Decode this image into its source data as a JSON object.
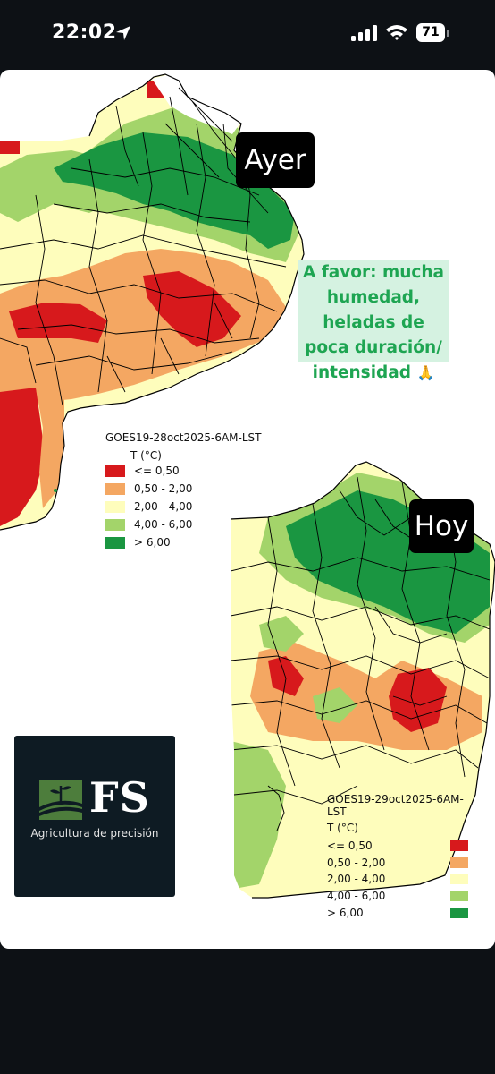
{
  "status_bar": {
    "time": "22:02",
    "battery": "71",
    "icons": [
      "location-arrow-icon",
      "signal-icon",
      "wifi-icon",
      "battery-icon"
    ]
  },
  "post": {
    "tag_yesterday": "Ayer",
    "tag_today": "Hoy",
    "note": {
      "line1": "A favor: mucha",
      "line2": "humedad, heladas de",
      "line3": "poca duración/",
      "line4": "intensidad",
      "emoji": "🙏"
    }
  },
  "legend_yesterday": {
    "title": "GOES19-28oct2025-6AM-LST",
    "unit": "T (°C)",
    "classes": [
      {
        "label": "<= 0,50",
        "color": "#d7191c"
      },
      {
        "label": "0,50 - 2,00",
        "color": "#f4a762"
      },
      {
        "label": "2,00 - 4,00",
        "color": "#fefdbc"
      },
      {
        "label": "4,00 - 6,00",
        "color": "#a3d46a"
      },
      {
        "label": "> 6,00",
        "color": "#1a9641"
      }
    ]
  },
  "legend_today": {
    "title": "GOES19-29oct2025-6AM-LST",
    "unit": "T (°C)",
    "classes": [
      {
        "label": "<= 0,50",
        "color": "#d7191c"
      },
      {
        "label": "0,50 - 2,00",
        "color": "#f4a762"
      },
      {
        "label": "2,00 - 4,00",
        "color": "#fefdbc"
      },
      {
        "label": "4,00 - 6,00",
        "color": "#a3d46a"
      },
      {
        "label": "> 6,00",
        "color": "#1a9641"
      }
    ]
  },
  "logo": {
    "letters": "FS",
    "tagline": "Agricultura de precisión"
  }
}
